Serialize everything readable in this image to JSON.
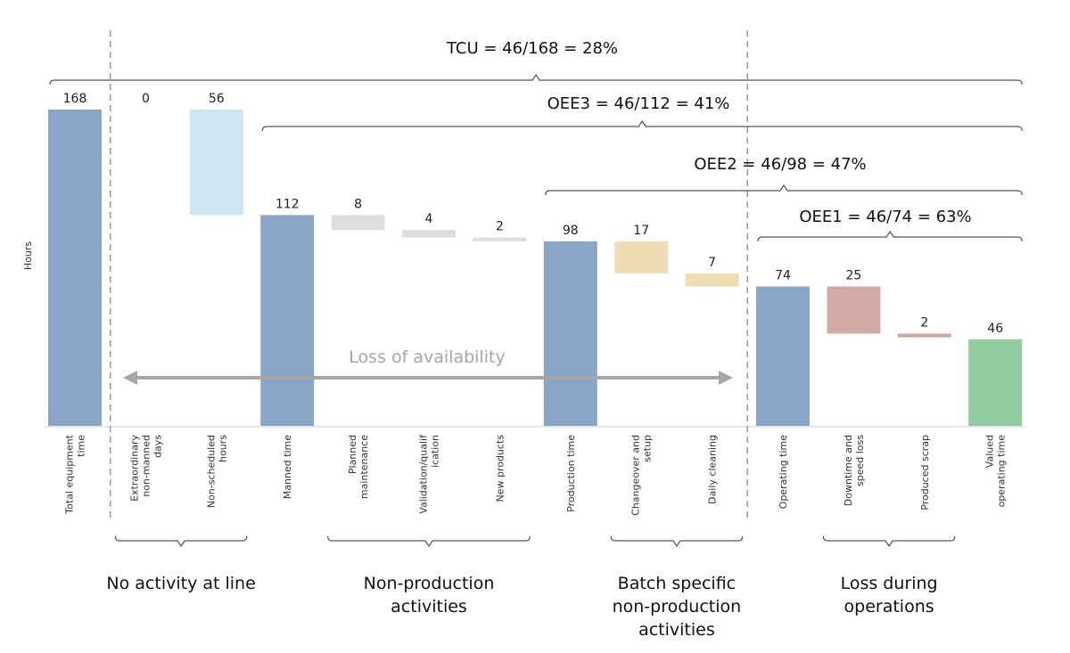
{
  "chart_data": {
    "type": "bar",
    "subtype": "waterfall",
    "ylabel": "Hours",
    "categories": [
      [
        "Total equipment",
        "time"
      ],
      [
        "Extraordinary",
        "non-manned",
        "days"
      ],
      [
        "Non-scheduled",
        "hours"
      ],
      [
        "Manned time"
      ],
      [
        "Planned",
        "maintenance"
      ],
      [
        "Validation/qualif",
        "ication"
      ],
      [
        "New products"
      ],
      [
        "Production time"
      ],
      [
        "Changeover and",
        "setup"
      ],
      [
        "Daily cleaning"
      ],
      [
        "Operating time"
      ],
      [
        "Downtime and",
        "speed loss"
      ],
      [
        "Produced scrap"
      ],
      [
        "Valued",
        "operating time"
      ]
    ],
    "values": [
      168,
      0,
      56,
      112,
      8,
      4,
      2,
      98,
      17,
      7,
      74,
      25,
      2,
      46
    ],
    "value_labels": [
      "168",
      "0",
      "56",
      "112",
      "8",
      "4",
      "2",
      "98",
      "17",
      "7",
      "74",
      "25",
      "2",
      "46"
    ],
    "bar_kind": [
      "total",
      "loss",
      "loss",
      "total",
      "loss",
      "loss",
      "loss",
      "total",
      "loss",
      "loss",
      "total",
      "loss",
      "loss",
      "final"
    ],
    "colors": [
      "#8aa5c8",
      "#cfe6f2",
      "#cfe6f2",
      "#8aa5c8",
      "#dedede",
      "#dedede",
      "#dedede",
      "#8aa5c8",
      "#eedcb3",
      "#eedcb3",
      "#8aa5c8",
      "#d3a9a5",
      "#d3a9a5",
      "#93cba3"
    ],
    "ylim": [
      0,
      168
    ],
    "ratio_labels": [
      {
        "text": "TCU = 46/168 = 28%",
        "from": 0,
        "to": 13
      },
      {
        "text": "OEE3 = 46/112 = 41%",
        "from": 3,
        "to": 13
      },
      {
        "text": "OEE2 = 46/98 = 47%",
        "from": 7,
        "to": 13
      },
      {
        "text": "OEE1 = 46/74 = 63%",
        "from": 10,
        "to": 13
      }
    ],
    "groups": [
      {
        "label": [
          "No activity at line"
        ],
        "from": 1,
        "to": 2
      },
      {
        "label": [
          "Non-production",
          "activities"
        ],
        "from": 4,
        "to": 6
      },
      {
        "label": [
          "Batch specific",
          "non-production",
          "activities"
        ],
        "from": 8,
        "to": 9
      },
      {
        "label": [
          "Loss during",
          "operations"
        ],
        "from": 11,
        "to": 12
      }
    ],
    "annotation": "Loss of availability",
    "separators_after": [
      0,
      9
    ]
  }
}
